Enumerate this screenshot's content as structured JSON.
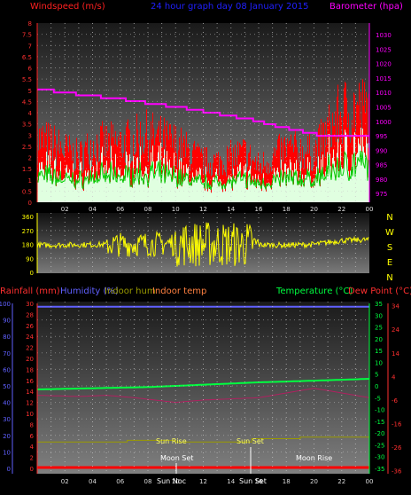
{
  "header": {
    "wind_label": "Windspeed (m/s)",
    "date_title": "24 hour graph day  08 January 2015",
    "baro_label": "Barometer (hpa)"
  },
  "bottom_header": {
    "rain_label": "Rainfall (mm)",
    "humidity_label": "Humidity (%)",
    "indoor_hum_label": "Indoor hum",
    "indoor_temp_label": "Indoor temp",
    "temp_label": "Temperature (°C)",
    "dew_label": "Dew Point (°C)"
  },
  "colors": {
    "wind_title": "#ff2020",
    "baro": "#ff00ff",
    "wind": "#ff0000",
    "gust": "#e0ffe0",
    "avg_wind": "#00cc00",
    "dir": "#ffff00",
    "humidity_axis": "#6060ff",
    "rain": "#ff0000",
    "temp": "#00ff40",
    "dew_axis": "#ff3030",
    "indoor_hum": "#9a9a00",
    "date": "#2020ff"
  },
  "x_ticks": [
    "02",
    "04",
    "06",
    "08",
    "10",
    "12",
    "14",
    "16",
    "18",
    "20",
    "22",
    "00"
  ],
  "compass": [
    "N",
    "W",
    "S",
    "E",
    "N"
  ],
  "events": {
    "sun_rise": "Sun Rise",
    "sun_set": "Sun Set",
    "moon_set": "Moon Set",
    "moon_rise": "Moon Rise",
    "sun_noon": "Sun Noc",
    "sun_set_tick": "Sun Set"
  },
  "chart_data": [
    {
      "type": "area",
      "name": "wind",
      "x_ticks": [
        "02",
        "04",
        "06",
        "08",
        "10",
        "12",
        "14",
        "16",
        "18",
        "20",
        "22",
        "00"
      ],
      "y_ticks_left": [
        "8",
        "7.5",
        "7",
        "6.5",
        "6",
        "5.5",
        "5",
        "4.5",
        "4",
        "3.5",
        "3",
        "2.5",
        "2",
        "1.5",
        "1",
        "0.5",
        "0"
      ],
      "y_ticks_right": [
        "1030",
        "1025",
        "1020",
        "1015",
        "1010",
        "1005",
        "1000",
        "995",
        "990",
        "985",
        "980",
        "975"
      ],
      "ylim": [
        0,
        8
      ],
      "ylim_right": [
        972,
        1034
      ],
      "baro_steps": [
        {
          "t": 0,
          "v": 1011
        },
        {
          "t": 1.2,
          "v": 1010
        },
        {
          "t": 2.8,
          "v": 1009
        },
        {
          "t": 4.6,
          "v": 1008
        },
        {
          "t": 6.4,
          "v": 1007
        },
        {
          "t": 7.8,
          "v": 1006
        },
        {
          "t": 9.3,
          "v": 1005
        },
        {
          "t": 10.8,
          "v": 1004
        },
        {
          "t": 12,
          "v": 1003
        },
        {
          "t": 13.2,
          "v": 1002
        },
        {
          "t": 14.4,
          "v": 1001
        },
        {
          "t": 15.6,
          "v": 1000
        },
        {
          "t": 16.4,
          "v": 999
        },
        {
          "t": 17.2,
          "v": 998
        },
        {
          "t": 18.2,
          "v": 997
        },
        {
          "t": 19.2,
          "v": 996
        },
        {
          "t": 20.2,
          "v": 995
        },
        {
          "t": 24,
          "v": 995
        }
      ],
      "gust_profile": [
        {
          "t": 0,
          "v": 2.8
        },
        {
          "t": 1,
          "v": 2.6
        },
        {
          "t": 2,
          "v": 2.3
        },
        {
          "t": 3,
          "v": 2.0
        },
        {
          "t": 4,
          "v": 2.6
        },
        {
          "t": 5,
          "v": 2.6
        },
        {
          "t": 6,
          "v": 2.6
        },
        {
          "t": 7,
          "v": 2.8
        },
        {
          "t": 8,
          "v": 3.0
        },
        {
          "t": 9,
          "v": 2.8
        },
        {
          "t": 10,
          "v": 2.6
        },
        {
          "t": 11,
          "v": 2.2
        },
        {
          "t": 12,
          "v": 1.8
        },
        {
          "t": 13,
          "v": 1.8
        },
        {
          "t": 14,
          "v": 2.0
        },
        {
          "t": 15,
          "v": 2.2
        },
        {
          "t": 16,
          "v": 1.6
        },
        {
          "t": 17,
          "v": 2.0
        },
        {
          "t": 18,
          "v": 2.4
        },
        {
          "t": 19,
          "v": 2.3
        },
        {
          "t": 20,
          "v": 2.2
        },
        {
          "t": 21,
          "v": 3.2
        },
        {
          "t": 22,
          "v": 4.0
        },
        {
          "t": 23,
          "v": 4.2
        },
        {
          "t": 24,
          "v": 4.0
        }
      ]
    },
    {
      "type": "scatter",
      "name": "wind direction",
      "y_ticks": [
        "360",
        "270",
        "180",
        "90",
        "0"
      ],
      "ylim": [
        0,
        360
      ],
      "base_profile": [
        {
          "t": 0,
          "v": 175
        },
        {
          "t": 6,
          "v": 180
        },
        {
          "t": 10,
          "v": 185
        },
        {
          "t": 14,
          "v": 180
        },
        {
          "t": 18,
          "v": 175
        },
        {
          "t": 20,
          "v": 180
        },
        {
          "t": 22,
          "v": 205
        },
        {
          "t": 24,
          "v": 210
        }
      ]
    },
    {
      "type": "line",
      "name": "temperature and humidity",
      "y_ticks_humidity": [
        "100",
        "90",
        "80",
        "70",
        "60",
        "50",
        "40",
        "30",
        "20",
        "10",
        "0"
      ],
      "y_ticks_rain": [
        "30",
        "28",
        "26",
        "24",
        "22",
        "20",
        "18",
        "16",
        "14",
        "12",
        "10",
        "8",
        "6",
        "4",
        "2",
        "0"
      ],
      "y_ticks_temp": [
        "35",
        "30",
        "25",
        "20",
        "15",
        "10",
        "5",
        "0",
        "-5",
        "-10",
        "-15",
        "-20",
        "-25",
        "-30",
        "-35"
      ],
      "y_ticks_dew": [
        "34",
        "24",
        "14",
        "4",
        "-6",
        "-16",
        "-26",
        "-36"
      ],
      "humidity_ylim": [
        0,
        100
      ],
      "temp_ylim": [
        -35,
        35
      ],
      "humidity_value": 98,
      "rain_value": 0,
      "temperature": [
        {
          "t": 0,
          "v": -1.5
        },
        {
          "t": 4,
          "v": -1.0
        },
        {
          "t": 8,
          "v": -0.5
        },
        {
          "t": 12,
          "v": 0.5
        },
        {
          "t": 16,
          "v": 1.5
        },
        {
          "t": 20,
          "v": 2.2
        },
        {
          "t": 24,
          "v": 3.0
        }
      ],
      "dew_point": [
        {
          "t": 0,
          "v": -4
        },
        {
          "t": 3,
          "v": -4.5
        },
        {
          "t": 5,
          "v": -4
        },
        {
          "t": 7,
          "v": -5
        },
        {
          "t": 10,
          "v": -7
        },
        {
          "t": 12,
          "v": -6
        },
        {
          "t": 14,
          "v": -5.5
        },
        {
          "t": 16,
          "v": -5
        },
        {
          "t": 18,
          "v": -3
        },
        {
          "t": 20,
          "v": -1
        },
        {
          "t": 22,
          "v": -3
        },
        {
          "t": 24,
          "v": -5
        }
      ],
      "indoor_hum": [
        {
          "t": 0,
          "v": 16
        },
        {
          "t": 6.5,
          "v": 16
        },
        {
          "t": 6.5,
          "v": 17
        },
        {
          "t": 10,
          "v": 17
        },
        {
          "t": 10,
          "v": 16
        },
        {
          "t": 15.5,
          "v": 16
        },
        {
          "t": 15.5,
          "v": 18
        },
        {
          "t": 19,
          "v": 18
        },
        {
          "t": 19,
          "v": 19
        },
        {
          "t": 24,
          "v": 19
        }
      ]
    }
  ]
}
